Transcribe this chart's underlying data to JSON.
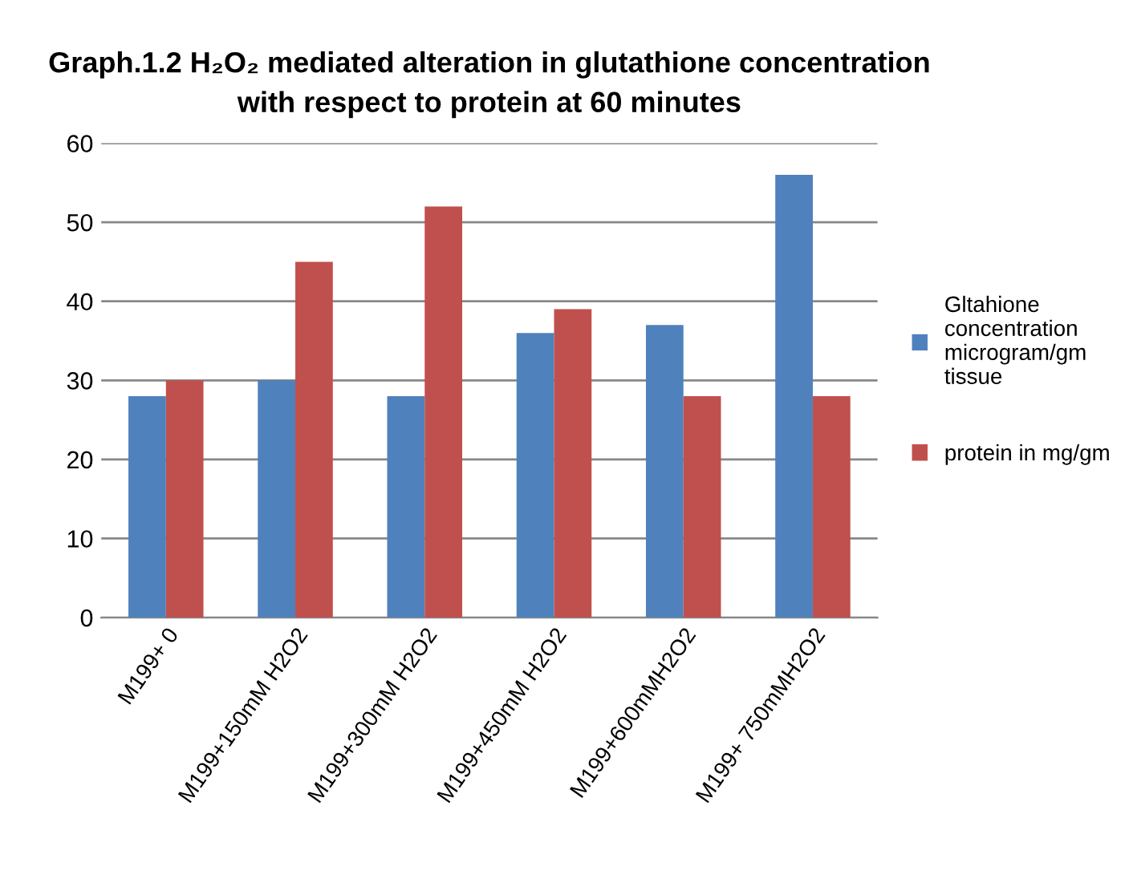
{
  "chart_data": {
    "type": "bar",
    "title": "Graph.1.2 H₂O₂ mediated alteration in glutathione concentration\nwith respect to protein at 60 minutes",
    "categories": [
      "M199+ 0",
      "M199+150mM H2O2",
      "M199+300mM H2O2",
      "M199+450mM H2O2",
      "M199+600mMH2O2",
      "M199+ 750mMH2O2"
    ],
    "series": [
      {
        "name": "Gltahione\nconcentration\nmicrogram/gm\ntissue",
        "color": "#4f81bd",
        "values": [
          28,
          30,
          28,
          36,
          37,
          56
        ]
      },
      {
        "name": "protein in mg/gm",
        "color": "#c0504d",
        "values": [
          30,
          45,
          52,
          39,
          28,
          28
        ]
      }
    ],
    "ylim": [
      0,
      60
    ],
    "yticks": [
      0,
      10,
      20,
      30,
      40,
      50,
      60
    ],
    "grid": "y",
    "legend": "right"
  }
}
